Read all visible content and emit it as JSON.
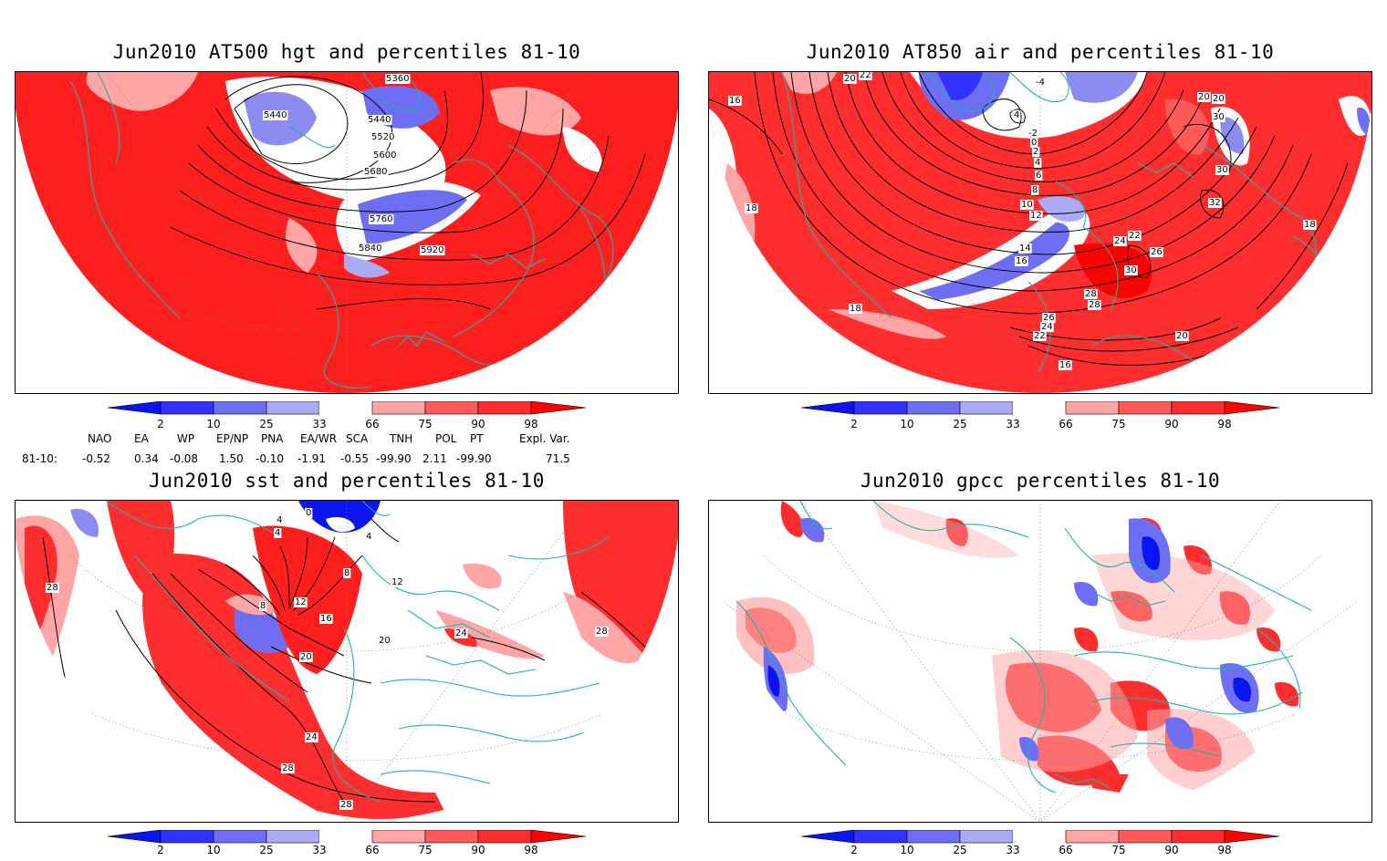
{
  "panels": [
    {
      "title": "Jun2010 AT500 hgt and percentiles 81-10",
      "contour_labels": [
        "5360",
        "5440",
        "5440",
        "5520",
        "5600",
        "5680",
        "5760",
        "5840",
        "5920"
      ]
    },
    {
      "title": "Jun2010 AT850 air and percentiles 81-10",
      "contour_labels": [
        "20",
        "22",
        "-4",
        "4",
        "-2",
        "0",
        "2",
        "4",
        "6",
        "8",
        "10",
        "12",
        "14",
        "16",
        "16",
        "18",
        "18",
        "18",
        "20",
        "22",
        "24",
        "26",
        "28",
        "30",
        "30",
        "30",
        "32",
        "22",
        "24",
        "26",
        "28",
        "20",
        "20",
        "16"
      ]
    },
    {
      "title": "Jun2010 sst and percentiles 81-10",
      "contour_labels": [
        "28",
        "0",
        "4",
        "4",
        "4",
        "8",
        "8",
        "12",
        "12",
        "16",
        "20",
        "20",
        "24",
        "24",
        "28",
        "28",
        "28"
      ]
    },
    {
      "title": "Jun2010 gpcc percentiles 81-10",
      "contour_labels": []
    }
  ],
  "colorbar": {
    "ticks": [
      "2",
      "10",
      "25",
      "33",
      "66",
      "75",
      "90",
      "98"
    ],
    "colors": {
      "below_2": "#0a14f0",
      "2_10": "#3232ff",
      "10_25": "#6e6ef5",
      "25_33": "#aaaaf5",
      "33_66": "#ffffff",
      "66_75": "#ffa5a5",
      "75_90": "#ff5a5a",
      "90_98": "#ff2d2d",
      "above_98": "#ff0000"
    }
  },
  "indices": {
    "names": [
      "NAO",
      "EA",
      "WP",
      "EP/NP",
      "PNA",
      "EA/WR",
      "SCA",
      "TNH",
      "POL",
      "PT",
      "Expl. Var."
    ],
    "row_label": "81-10:",
    "values": [
      "-0.52",
      "0.34",
      "-0.08",
      "1.50",
      "-0.10",
      "-1.91",
      "-0.55",
      "-99.90",
      "2.11",
      "-99.90",
      "71.5"
    ]
  },
  "colors": {
    "coastline": "#20b2aa",
    "contour": "#000000",
    "frame": "#000000"
  }
}
